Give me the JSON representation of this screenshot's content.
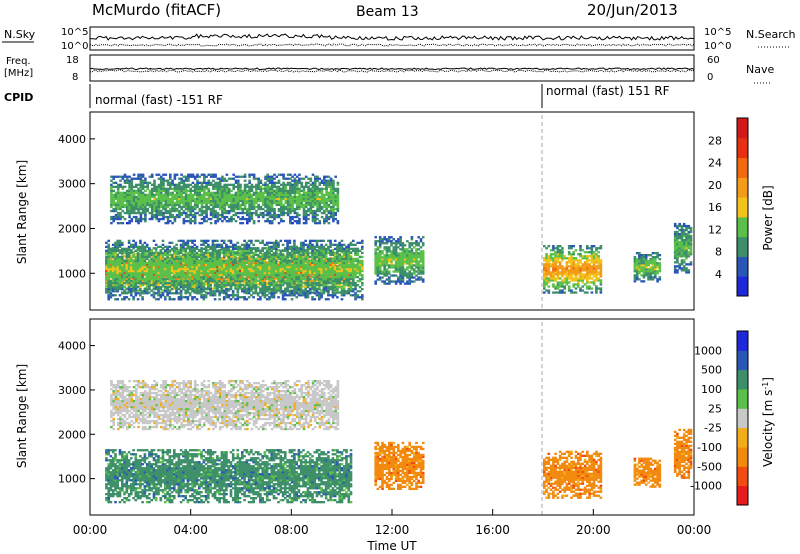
{
  "header": {
    "station": "McMurdo (fitACF)",
    "beam": "Beam 13",
    "date": "20/Jun/2013"
  },
  "top_panels": {
    "nsky_label": "N.Sky",
    "nsearch_label": "N.Search",
    "noise_ticks_left": [
      "10^5",
      "10^0"
    ],
    "noise_ticks_right": [
      "10^5",
      "10^0"
    ],
    "freq_label_line1": "Freq.",
    "freq_label_line2": "[MHz]",
    "freq_ticks": [
      "18",
      "8"
    ],
    "nave_label": "Nave",
    "nave_ticks": [
      "60",
      "0"
    ],
    "cpid_label": "CPID",
    "cpid_mode_1": "normal (fast) -151 RF",
    "cpid_mode_2": "normal (fast) 151 RF"
  },
  "colors": {
    "power_scale": [
      "#1f28d9",
      "#2a56b8",
      "#3d8f6a",
      "#5ac04a",
      "#f3c31a",
      "#f39b1b",
      "#f26a10",
      "#e63010",
      "#d21a1a"
    ],
    "velocity_scale": [
      "#e61c1c",
      "#f24d10",
      "#f38a10",
      "#f3ad1b",
      "#c8c8c8",
      "#5ac04a",
      "#3d8f6a",
      "#2a56b8",
      "#1f28d9"
    ],
    "ground_scatter": "#7f7f7f"
  },
  "chart_data": [
    {
      "type": "heatmap",
      "title": "",
      "xlabel": "Time UT",
      "ylabel": "Slant Range [km]",
      "x_range_hours": [
        0,
        24
      ],
      "x_ticks": [
        "00:00",
        "04:00",
        "08:00",
        "12:00",
        "16:00",
        "20:00",
        "00:00"
      ],
      "y_range_km": [
        180,
        4600
      ],
      "y_ticks": [
        "1000",
        "2000",
        "3000",
        "4000"
      ],
      "colorbar": {
        "label": "Power [dB]",
        "range": [
          0,
          32
        ],
        "ticks": [
          "4",
          "8",
          "12",
          "16",
          "20",
          "24",
          "28"
        ]
      },
      "scatter_regions": [
        {
          "t_start": 0.6,
          "t_end": 10.4,
          "r_low": 550,
          "r_high": 1550,
          "level": 0.85
        },
        {
          "t_start": 0.6,
          "t_end": 10.8,
          "r_low": 400,
          "r_high": 1750,
          "level": 0.35
        },
        {
          "t_start": 0.8,
          "t_end": 9.8,
          "r_low": 2100,
          "r_high": 3200,
          "level": 0.3
        },
        {
          "t_start": 11.3,
          "t_end": 13.2,
          "r_low": 750,
          "r_high": 1800,
          "level": 0.35
        },
        {
          "t_start": 18.0,
          "t_end": 20.3,
          "r_low": 550,
          "r_high": 1600,
          "level": 0.6
        },
        {
          "t_start": 21.6,
          "t_end": 22.6,
          "r_low": 800,
          "r_high": 1450,
          "level": 0.35
        },
        {
          "t_start": 23.2,
          "t_end": 23.9,
          "r_low": 1000,
          "r_high": 2100,
          "level": 0.3
        }
      ]
    },
    {
      "type": "heatmap",
      "title": "",
      "xlabel": "Time UT",
      "ylabel": "Slant Range [km]",
      "x_range_hours": [
        0,
        24
      ],
      "x_ticks": [
        "00:00",
        "04:00",
        "08:00",
        "12:00",
        "16:00",
        "20:00",
        "00:00"
      ],
      "y_range_km": [
        180,
        4600
      ],
      "y_ticks": [
        "1000",
        "2000",
        "3000",
        "4000"
      ],
      "colorbar": {
        "label": "Velocity [m s^-1]",
        "ticks": [
          "1000",
          "500",
          "100",
          "25",
          "-25",
          "-100",
          "-500",
          "-1000"
        ]
      },
      "scatter_regions": [
        {
          "t_start": 0.6,
          "t_end": 10.4,
          "r_low": 450,
          "r_high": 1650,
          "velocity": 100
        },
        {
          "t_start": 0.8,
          "t_end": 9.8,
          "r_low": 2100,
          "r_high": 3200,
          "velocity": -25
        },
        {
          "t_start": 11.3,
          "t_end": 13.2,
          "r_low": 750,
          "r_high": 1800,
          "velocity": -100
        },
        {
          "t_start": 18.0,
          "t_end": 20.3,
          "r_low": 550,
          "r_high": 1600,
          "velocity": -100
        },
        {
          "t_start": 21.6,
          "t_end": 22.6,
          "r_low": 800,
          "r_high": 1450,
          "velocity": -100
        },
        {
          "t_start": 23.2,
          "t_end": 23.9,
          "r_low": 1000,
          "r_high": 2100,
          "velocity": -100
        }
      ]
    }
  ]
}
